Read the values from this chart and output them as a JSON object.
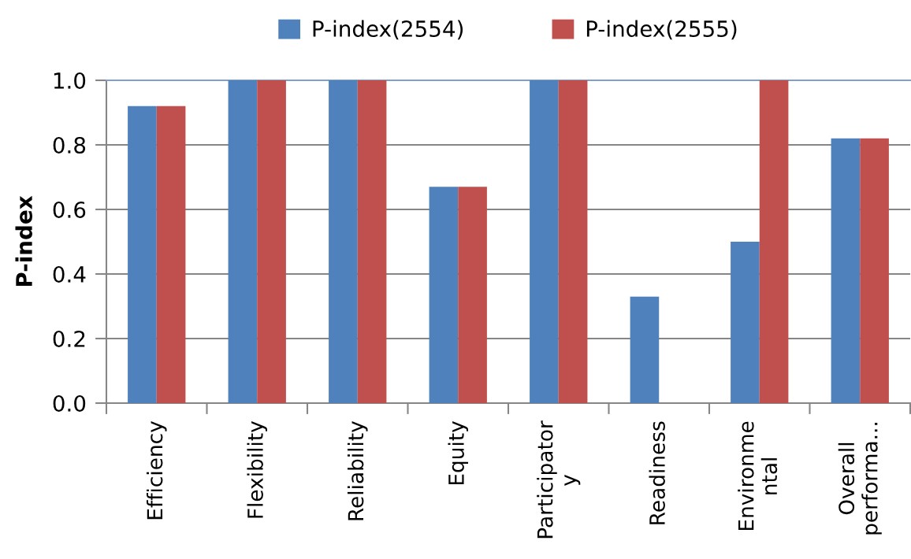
{
  "chart_data": {
    "type": "bar",
    "ylabel": "P-index",
    "categories": [
      "Efficiency",
      "Flexibility",
      "Reliability",
      "Equity",
      "Participator\ny",
      "Readiness",
      "Environme\nntal",
      "Overall\nperforma..."
    ],
    "series": [
      {
        "name": "P-index(2554)",
        "color": "#4f81bd",
        "values": [
          0.92,
          1.0,
          1.0,
          0.67,
          1.0,
          0.33,
          0.5,
          0.82
        ]
      },
      {
        "name": "P-index(2555)",
        "color": "#c0504d",
        "values": [
          0.92,
          1.0,
          1.0,
          0.67,
          1.0,
          0,
          1.0,
          0.82
        ]
      }
    ],
    "ylim": [
      0,
      1.0
    ],
    "yticks": [
      {
        "value": 0,
        "label": "0.0"
      },
      {
        "value": 0.2,
        "label": "0.2"
      },
      {
        "value": 0.4,
        "label": "0.4"
      },
      {
        "value": 0.6,
        "label": "0.6"
      },
      {
        "value": 0.8,
        "label": "0.8"
      },
      {
        "value": 1.0,
        "label": "1.0"
      }
    ],
    "grid": "y",
    "legend": "top"
  }
}
